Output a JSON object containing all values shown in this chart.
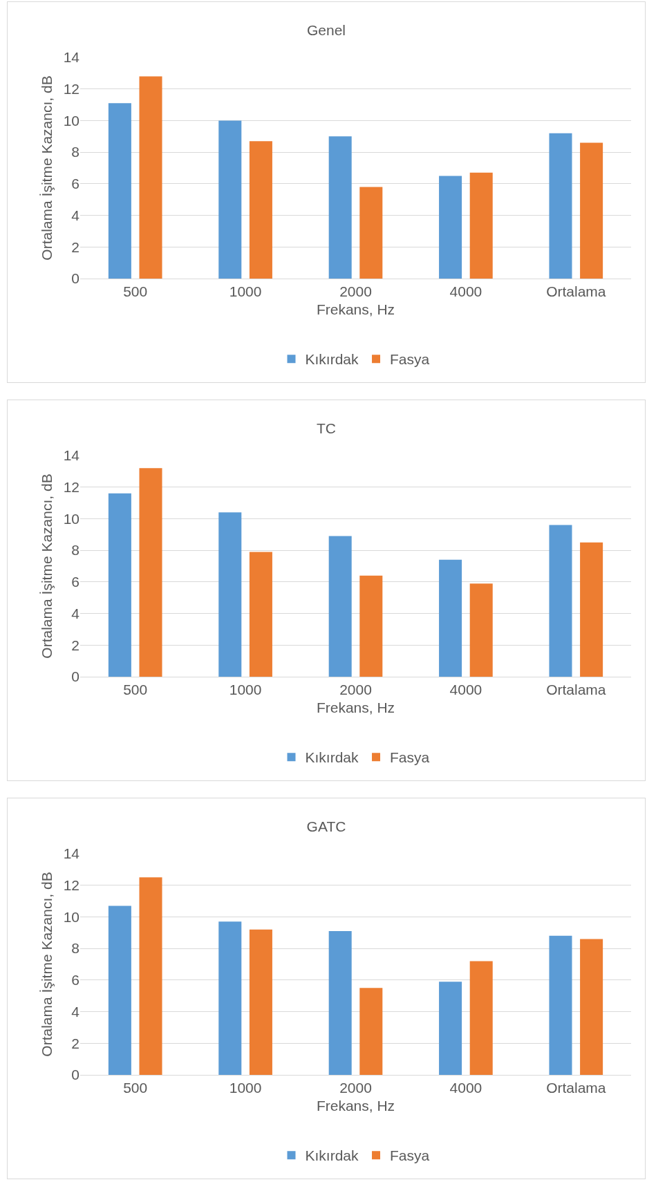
{
  "chart_data": [
    {
      "type": "bar",
      "title": "Genel",
      "xlabel": "Frekans, Hz",
      "ylabel": "Ortalama İşitme Kazancı, dB",
      "categories": [
        "500",
        "1000",
        "2000",
        "4000",
        "Ortalama"
      ],
      "series": [
        {
          "name": "Kıkırdak",
          "color": "#5b9bd5",
          "values": [
            11.1,
            10.0,
            9.0,
            6.5,
            9.2
          ]
        },
        {
          "name": "Fasya",
          "color": "#ed7d31",
          "values": [
            12.8,
            8.7,
            5.8,
            6.7,
            8.6
          ]
        }
      ],
      "ylim": [
        0,
        14
      ],
      "yticks": [
        0,
        2,
        4,
        6,
        8,
        10,
        12,
        14
      ],
      "grid": "y",
      "legend": "bottom"
    },
    {
      "type": "bar",
      "title": "TC",
      "xlabel": "Frekans, Hz",
      "ylabel": "Ortalama İşitme Kazancı, dB",
      "categories": [
        "500",
        "1000",
        "2000",
        "4000",
        "Ortalama"
      ],
      "series": [
        {
          "name": "Kıkırdak",
          "color": "#5b9bd5",
          "values": [
            11.6,
            10.4,
            8.9,
            7.4,
            9.6
          ]
        },
        {
          "name": "Fasya",
          "color": "#ed7d31",
          "values": [
            13.2,
            7.9,
            6.4,
            5.9,
            8.5
          ]
        }
      ],
      "ylim": [
        0,
        14
      ],
      "yticks": [
        0,
        2,
        4,
        6,
        8,
        10,
        12,
        14
      ],
      "grid": "y",
      "legend": "bottom"
    },
    {
      "type": "bar",
      "title": "GATC",
      "xlabel": "Frekans, Hz",
      "ylabel": "Ortalama İşitme Kazancı, dB",
      "categories": [
        "500",
        "1000",
        "2000",
        "4000",
        "Ortalama"
      ],
      "series": [
        {
          "name": "Kıkırdak",
          "color": "#5b9bd5",
          "values": [
            10.7,
            9.7,
            9.1,
            5.9,
            8.8
          ]
        },
        {
          "name": "Fasya",
          "color": "#ed7d31",
          "values": [
            12.5,
            9.2,
            5.5,
            7.2,
            8.6
          ]
        }
      ],
      "ylim": [
        0,
        14
      ],
      "yticks": [
        0,
        2,
        4,
        6,
        8,
        10,
        12,
        14
      ],
      "grid": "y",
      "legend": "bottom"
    }
  ]
}
